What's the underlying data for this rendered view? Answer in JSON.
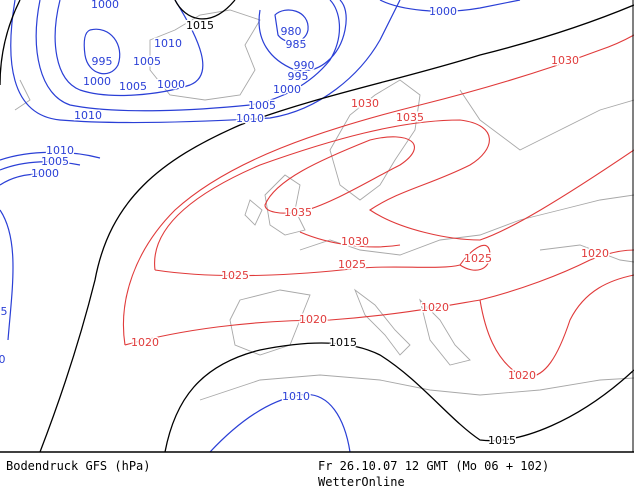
{
  "map": {
    "labels": [
      "1000",
      "995",
      "1005",
      "1010",
      "1000",
      "1005",
      "1000",
      "1010",
      "1005",
      "1010",
      "1000",
      "995",
      "990",
      "985",
      "980",
      "1000",
      "1010",
      "1005",
      "1000",
      "1010",
      "5",
      "0",
      "1015",
      "1015",
      "1015",
      "1030",
      "1030",
      "1035",
      "1035",
      "1030",
      "1025",
      "1025",
      "1025",
      "1020",
      "1020",
      "1020",
      "1020",
      "1020"
    ]
  },
  "footer": {
    "title": "Bodendruck GFS (hPa)",
    "date": "Fr 26.10.07 12 GMT (Mo 06 + 102)",
    "source": "WetterOnline"
  }
}
